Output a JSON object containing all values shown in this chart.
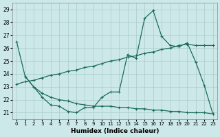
{
  "xlabel": "Humidex (Indice chaleur)",
  "xlim": [
    -0.5,
    23.5
  ],
  "ylim": [
    20.5,
    29.5
  ],
  "yticks": [
    21,
    22,
    23,
    24,
    25,
    26,
    27,
    28,
    29
  ],
  "xticks": [
    0,
    1,
    2,
    3,
    4,
    5,
    6,
    7,
    8,
    9,
    10,
    11,
    12,
    13,
    14,
    15,
    16,
    17,
    18,
    19,
    20,
    21,
    22,
    23
  ],
  "bg_color": "#cce8e8",
  "grid_color": "#aacccc",
  "line_color": "#1a6b5a",
  "line1_x": [
    0,
    1,
    2,
    3,
    4,
    5,
    6,
    7,
    8,
    9,
    10,
    11,
    12,
    13,
    14,
    15,
    16,
    17,
    18,
    19,
    20,
    21,
    22,
    23
  ],
  "line1_y": [
    26.5,
    23.8,
    23.0,
    22.2,
    21.6,
    21.5,
    21.1,
    21.0,
    21.4,
    21.4,
    22.2,
    22.6,
    22.6,
    25.5,
    25.2,
    28.3,
    28.9,
    26.9,
    26.2,
    26.1,
    26.4,
    24.9,
    23.1,
    20.9
  ],
  "line2_x": [
    0,
    1,
    2,
    3,
    4,
    5,
    6,
    7,
    8,
    9,
    10,
    11,
    12,
    13,
    14,
    15,
    16,
    17,
    18,
    19,
    20,
    21,
    22,
    23
  ],
  "line2_y": [
    23.2,
    23.4,
    23.5,
    23.7,
    23.9,
    24.0,
    24.2,
    24.3,
    24.5,
    24.6,
    24.8,
    25.0,
    25.1,
    25.3,
    25.4,
    25.6,
    25.7,
    25.9,
    26.0,
    26.2,
    26.3,
    26.2,
    26.2,
    26.2
  ],
  "line3_x": [
    1,
    2,
    3,
    4,
    5,
    6,
    7,
    8,
    9,
    10,
    11,
    12,
    13,
    14,
    15,
    16,
    17,
    18,
    19,
    20,
    21,
    22,
    23
  ],
  "line3_y": [
    23.8,
    23.0,
    22.5,
    22.2,
    22.0,
    21.9,
    21.7,
    21.6,
    21.5,
    21.5,
    21.5,
    21.4,
    21.4,
    21.3,
    21.3,
    21.2,
    21.2,
    21.1,
    21.1,
    21.0,
    21.0,
    21.0,
    20.9
  ]
}
